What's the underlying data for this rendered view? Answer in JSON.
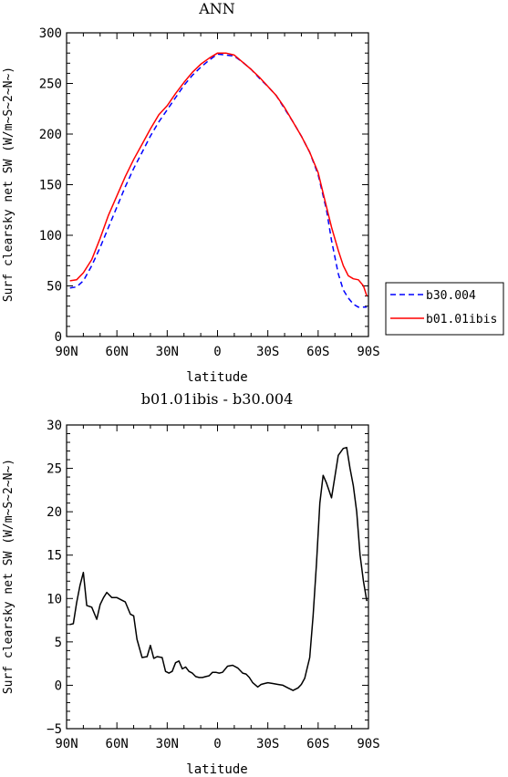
{
  "chart_data": [
    {
      "type": "line",
      "title": "ANN",
      "xlabel": "latitude",
      "ylabel": "Surf clearsky net SW (W/m~S~2~N~)",
      "x_tick_labels": [
        "90N",
        "60N",
        "30N",
        "0",
        "30S",
        "60S",
        "90S"
      ],
      "x_ticks": [
        90,
        60,
        30,
        0,
        -30,
        -60,
        -90
      ],
      "xlim": [
        90,
        -90
      ],
      "ylim": [
        0,
        300
      ],
      "y_ticks": [
        0,
        50,
        100,
        150,
        200,
        250,
        300
      ],
      "grid": false,
      "legend_position": "right",
      "series": [
        {
          "name": "b30.004",
          "color": "#0000ff",
          "dash": true,
          "x": [
            88,
            84,
            80,
            75,
            70,
            65,
            60,
            55,
            50,
            45,
            40,
            35,
            30,
            25,
            20,
            15,
            10,
            5,
            0,
            -5,
            -10,
            -15,
            -20,
            -25,
            -30,
            -35,
            -40,
            -45,
            -50,
            -55,
            -60,
            -65,
            -68,
            -72,
            -75,
            -78,
            -81,
            -84,
            -87,
            -89
          ],
          "y": [
            48,
            49,
            55,
            70,
            88,
            108,
            128,
            148,
            166,
            182,
            198,
            212,
            224,
            236,
            248,
            258,
            266,
            273,
            279,
            278,
            277,
            271,
            264,
            255,
            247,
            238,
            225,
            212,
            198,
            182,
            160,
            125,
            95,
            62,
            46,
            38,
            32,
            29,
            29,
            29
          ]
        },
        {
          "name": "b01.01ibis",
          "color": "#ff0000",
          "dash": false,
          "x": [
            88,
            84,
            80,
            75,
            70,
            65,
            60,
            55,
            50,
            45,
            40,
            35,
            30,
            25,
            20,
            15,
            10,
            5,
            0,
            -5,
            -10,
            -15,
            -20,
            -25,
            -30,
            -35,
            -40,
            -45,
            -50,
            -55,
            -60,
            -65,
            -68,
            -72,
            -75,
            -78,
            -81,
            -84,
            -87,
            -89
          ],
          "y": [
            55,
            56,
            63,
            76,
            97,
            120,
            139,
            158,
            175,
            190,
            205,
            219,
            228,
            240,
            251,
            261,
            269,
            275,
            280,
            280,
            278,
            271,
            264,
            256,
            247,
            238,
            226,
            212,
            198,
            182,
            162,
            128,
            108,
            85,
            70,
            60,
            57,
            56,
            50,
            40
          ]
        }
      ]
    },
    {
      "type": "line",
      "title": "b01.01ibis - b30.004",
      "xlabel": "latitude",
      "ylabel": "Surf clearsky net SW (W/m~S~2~N~)",
      "x_tick_labels": [
        "90N",
        "60N",
        "30N",
        "0",
        "30S",
        "60S",
        "90S"
      ],
      "x_ticks": [
        90,
        60,
        30,
        0,
        -30,
        -60,
        -90
      ],
      "xlim": [
        90,
        -90
      ],
      "ylim": [
        -5,
        30
      ],
      "y_ticks": [
        -5,
        0,
        5,
        10,
        15,
        20,
        25,
        30
      ],
      "grid": false,
      "series": [
        {
          "color": "#000000",
          "dash": false,
          "x": [
            88,
            86,
            84,
            82,
            80,
            78,
            75,
            72,
            70,
            68,
            66,
            63,
            60,
            57,
            55,
            52,
            50,
            48,
            45,
            42,
            40,
            38,
            36,
            33,
            31,
            29,
            27,
            25,
            23,
            21,
            19,
            17,
            15,
            13,
            11,
            9,
            7,
            5,
            3,
            1,
            -1,
            -3,
            -6,
            -9,
            -12,
            -15,
            -17,
            -19,
            -21,
            -24,
            -26,
            -28,
            -30,
            -33,
            -36,
            -39,
            -42,
            -45,
            -48,
            -50,
            -52,
            -55,
            -57,
            -59,
            -61,
            -63,
            -65,
            -68,
            -72,
            -75,
            -77,
            -79,
            -81,
            -83,
            -85,
            -87,
            -89
          ],
          "y": [
            7.0,
            7.1,
            9.5,
            11.5,
            13.0,
            9.2,
            9.0,
            7.6,
            9.3,
            10.1,
            10.7,
            10.1,
            10.1,
            9.8,
            9.6,
            8.2,
            8.0,
            5.3,
            3.2,
            3.3,
            4.6,
            3.1,
            3.3,
            3.2,
            1.6,
            1.4,
            1.6,
            2.6,
            2.8,
            1.9,
            2.1,
            1.6,
            1.4,
            1.0,
            0.9,
            0.9,
            1.0,
            1.1,
            1.5,
            1.5,
            1.4,
            1.5,
            2.2,
            2.3,
            2.0,
            1.4,
            1.3,
            0.9,
            0.3,
            -0.2,
            0.1,
            0.2,
            0.3,
            0.2,
            0.1,
            0.0,
            -0.3,
            -0.6,
            -0.3,
            0.1,
            0.8,
            3.2,
            8.0,
            14.0,
            21.0,
            24.2,
            23.3,
            21.6,
            26.5,
            27.3,
            27.4,
            25.0,
            23.0,
            20.0,
            15.0,
            12.0,
            9.7
          ]
        }
      ]
    }
  ]
}
